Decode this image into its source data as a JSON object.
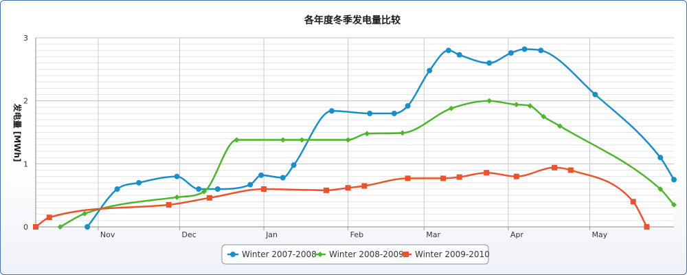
{
  "chart_data": {
    "type": "line",
    "title": "各年度冬季发电量比较",
    "xlabel": "",
    "ylabel": "发电量 [MWh]",
    "x_axis_type": "date",
    "x_tick_labels": [
      "Nov",
      "Dec",
      "Jan",
      "Feb",
      "Mar",
      "Apr",
      "May"
    ],
    "x_tick_dates": [
      "11-01",
      "12-01",
      "01-01",
      "02-01",
      "03-01",
      "04-01",
      "05-01"
    ],
    "xlim": [
      "10-09",
      "06-01"
    ],
    "ylim": [
      0,
      3
    ],
    "y_ticks": [
      0,
      1,
      2,
      3
    ],
    "grid": true,
    "legend_position": "bottom-center",
    "series": [
      {
        "name": "Winter 2007-2008",
        "color": "#1b8ec7",
        "marker": "circle",
        "points": [
          [
            "10-28",
            0.0
          ],
          [
            "11-08",
            0.6
          ],
          [
            "11-16",
            0.7
          ],
          [
            "11-30",
            0.8
          ],
          [
            "12-08",
            0.6
          ],
          [
            "12-15",
            0.6
          ],
          [
            "12-27",
            0.67
          ],
          [
            "12-31",
            0.82
          ],
          [
            "01-08",
            0.78
          ],
          [
            "01-12",
            0.98
          ],
          [
            "01-26",
            1.84
          ],
          [
            "02-09",
            1.8
          ],
          [
            "02-18",
            1.8
          ],
          [
            "02-23",
            1.92
          ],
          [
            "03-03",
            2.48
          ],
          [
            "03-10",
            2.8
          ],
          [
            "03-14",
            2.73
          ],
          [
            "03-25",
            2.6
          ],
          [
            "04-02",
            2.76
          ],
          [
            "04-07",
            2.82
          ],
          [
            "04-13",
            2.8
          ],
          [
            "05-03",
            2.1
          ],
          [
            "05-27",
            1.1
          ],
          [
            "06-01",
            0.75
          ]
        ]
      },
      {
        "name": "Winter 2008-2009",
        "color": "#4eb52d",
        "marker": "diamond",
        "points": [
          [
            "10-18",
            0.0
          ],
          [
            "10-27",
            0.21
          ],
          [
            "11-30",
            0.47
          ],
          [
            "12-10",
            0.56
          ],
          [
            "12-22",
            1.38
          ],
          [
            "01-08",
            1.38
          ],
          [
            "01-15",
            1.38
          ],
          [
            "02-01",
            1.38
          ],
          [
            "02-08",
            1.48
          ],
          [
            "02-21",
            1.49
          ],
          [
            "03-11",
            1.88
          ],
          [
            "03-25",
            2.0
          ],
          [
            "04-04",
            1.94
          ],
          [
            "04-09",
            1.92
          ],
          [
            "04-14",
            1.75
          ],
          [
            "04-20",
            1.6
          ],
          [
            "05-27",
            0.6
          ],
          [
            "06-01",
            0.35
          ]
        ]
      },
      {
        "name": "Winter 2009-2010",
        "color": "#e8542b",
        "marker": "square",
        "points": [
          [
            "10-09",
            0.0
          ],
          [
            "10-14",
            0.15
          ],
          [
            "11-27",
            0.35
          ],
          [
            "12-12",
            0.46
          ],
          [
            "01-01",
            0.6
          ],
          [
            "01-24",
            0.58
          ],
          [
            "02-01",
            0.62
          ],
          [
            "02-07",
            0.65
          ],
          [
            "02-23",
            0.77
          ],
          [
            "03-08",
            0.77
          ],
          [
            "03-14",
            0.79
          ],
          [
            "03-24",
            0.86
          ],
          [
            "04-04",
            0.8
          ],
          [
            "04-18",
            0.94
          ],
          [
            "04-24",
            0.9
          ],
          [
            "05-17",
            0.4
          ],
          [
            "05-22",
            0.0
          ]
        ]
      }
    ]
  }
}
